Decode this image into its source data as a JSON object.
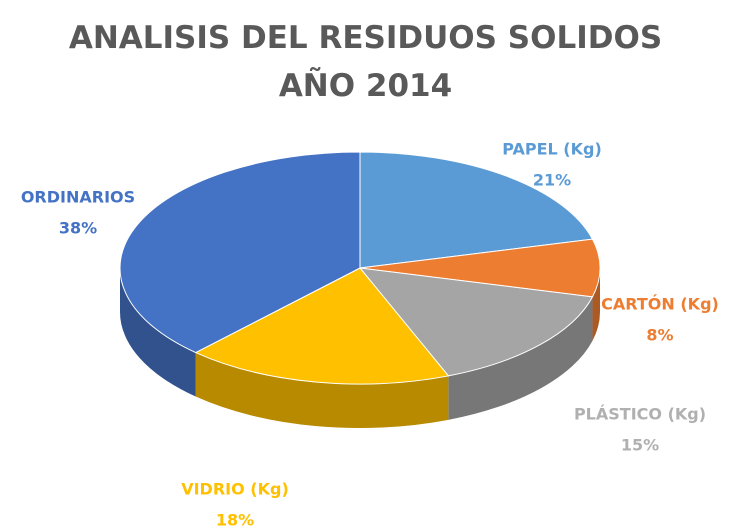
{
  "chart_data": {
    "type": "pie",
    "title": "ANALISIS DEL RESIDUOS SOLIDOS AÑO 2014",
    "categories": [
      "PAPEL (Kg)",
      "CARTÓN (Kg)",
      "PLÁSTICO (Kg)",
      "VIDRIO (Kg)",
      "ORDINARIOS"
    ],
    "values": [
      21,
      8,
      15,
      18,
      38
    ],
    "value_labels": [
      "21%",
      "8%",
      "15%",
      "18%",
      "38%"
    ],
    "colors": [
      "#5b9bd5",
      "#ed7d31",
      "#a5a5a5",
      "#ffc000",
      "#4472c4"
    ]
  }
}
